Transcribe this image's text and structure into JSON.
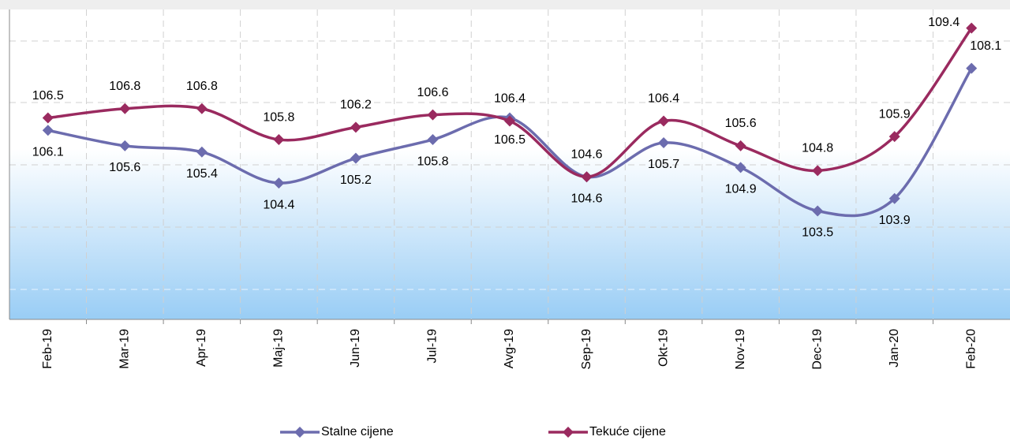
{
  "chart_data": {
    "type": "line",
    "categories": [
      "Feb-19",
      "Mar-19",
      "Apr-19",
      "Maj-19",
      "Jun-19",
      "Jul-19",
      "Avg-19",
      "Sep-19",
      "Okt-19",
      "Nov-19",
      "Dec-19",
      "Jan-20",
      "Feb-20"
    ],
    "series": [
      {
        "name": "Stalne cijene",
        "color": "#6c6cae",
        "values": [
          106.1,
          105.6,
          105.4,
          104.4,
          105.2,
          105.8,
          106.5,
          104.6,
          105.7,
          104.9,
          103.5,
          103.9,
          108.1
        ]
      },
      {
        "name": "Tekuće cijene",
        "color": "#9a2a5f",
        "values": [
          106.5,
          106.8,
          106.8,
          105.8,
          106.2,
          106.6,
          106.4,
          104.6,
          106.4,
          105.6,
          104.8,
          105.9,
          109.4
        ]
      }
    ],
    "ylim": [
      100,
      110
    ],
    "legend": "bottom"
  }
}
